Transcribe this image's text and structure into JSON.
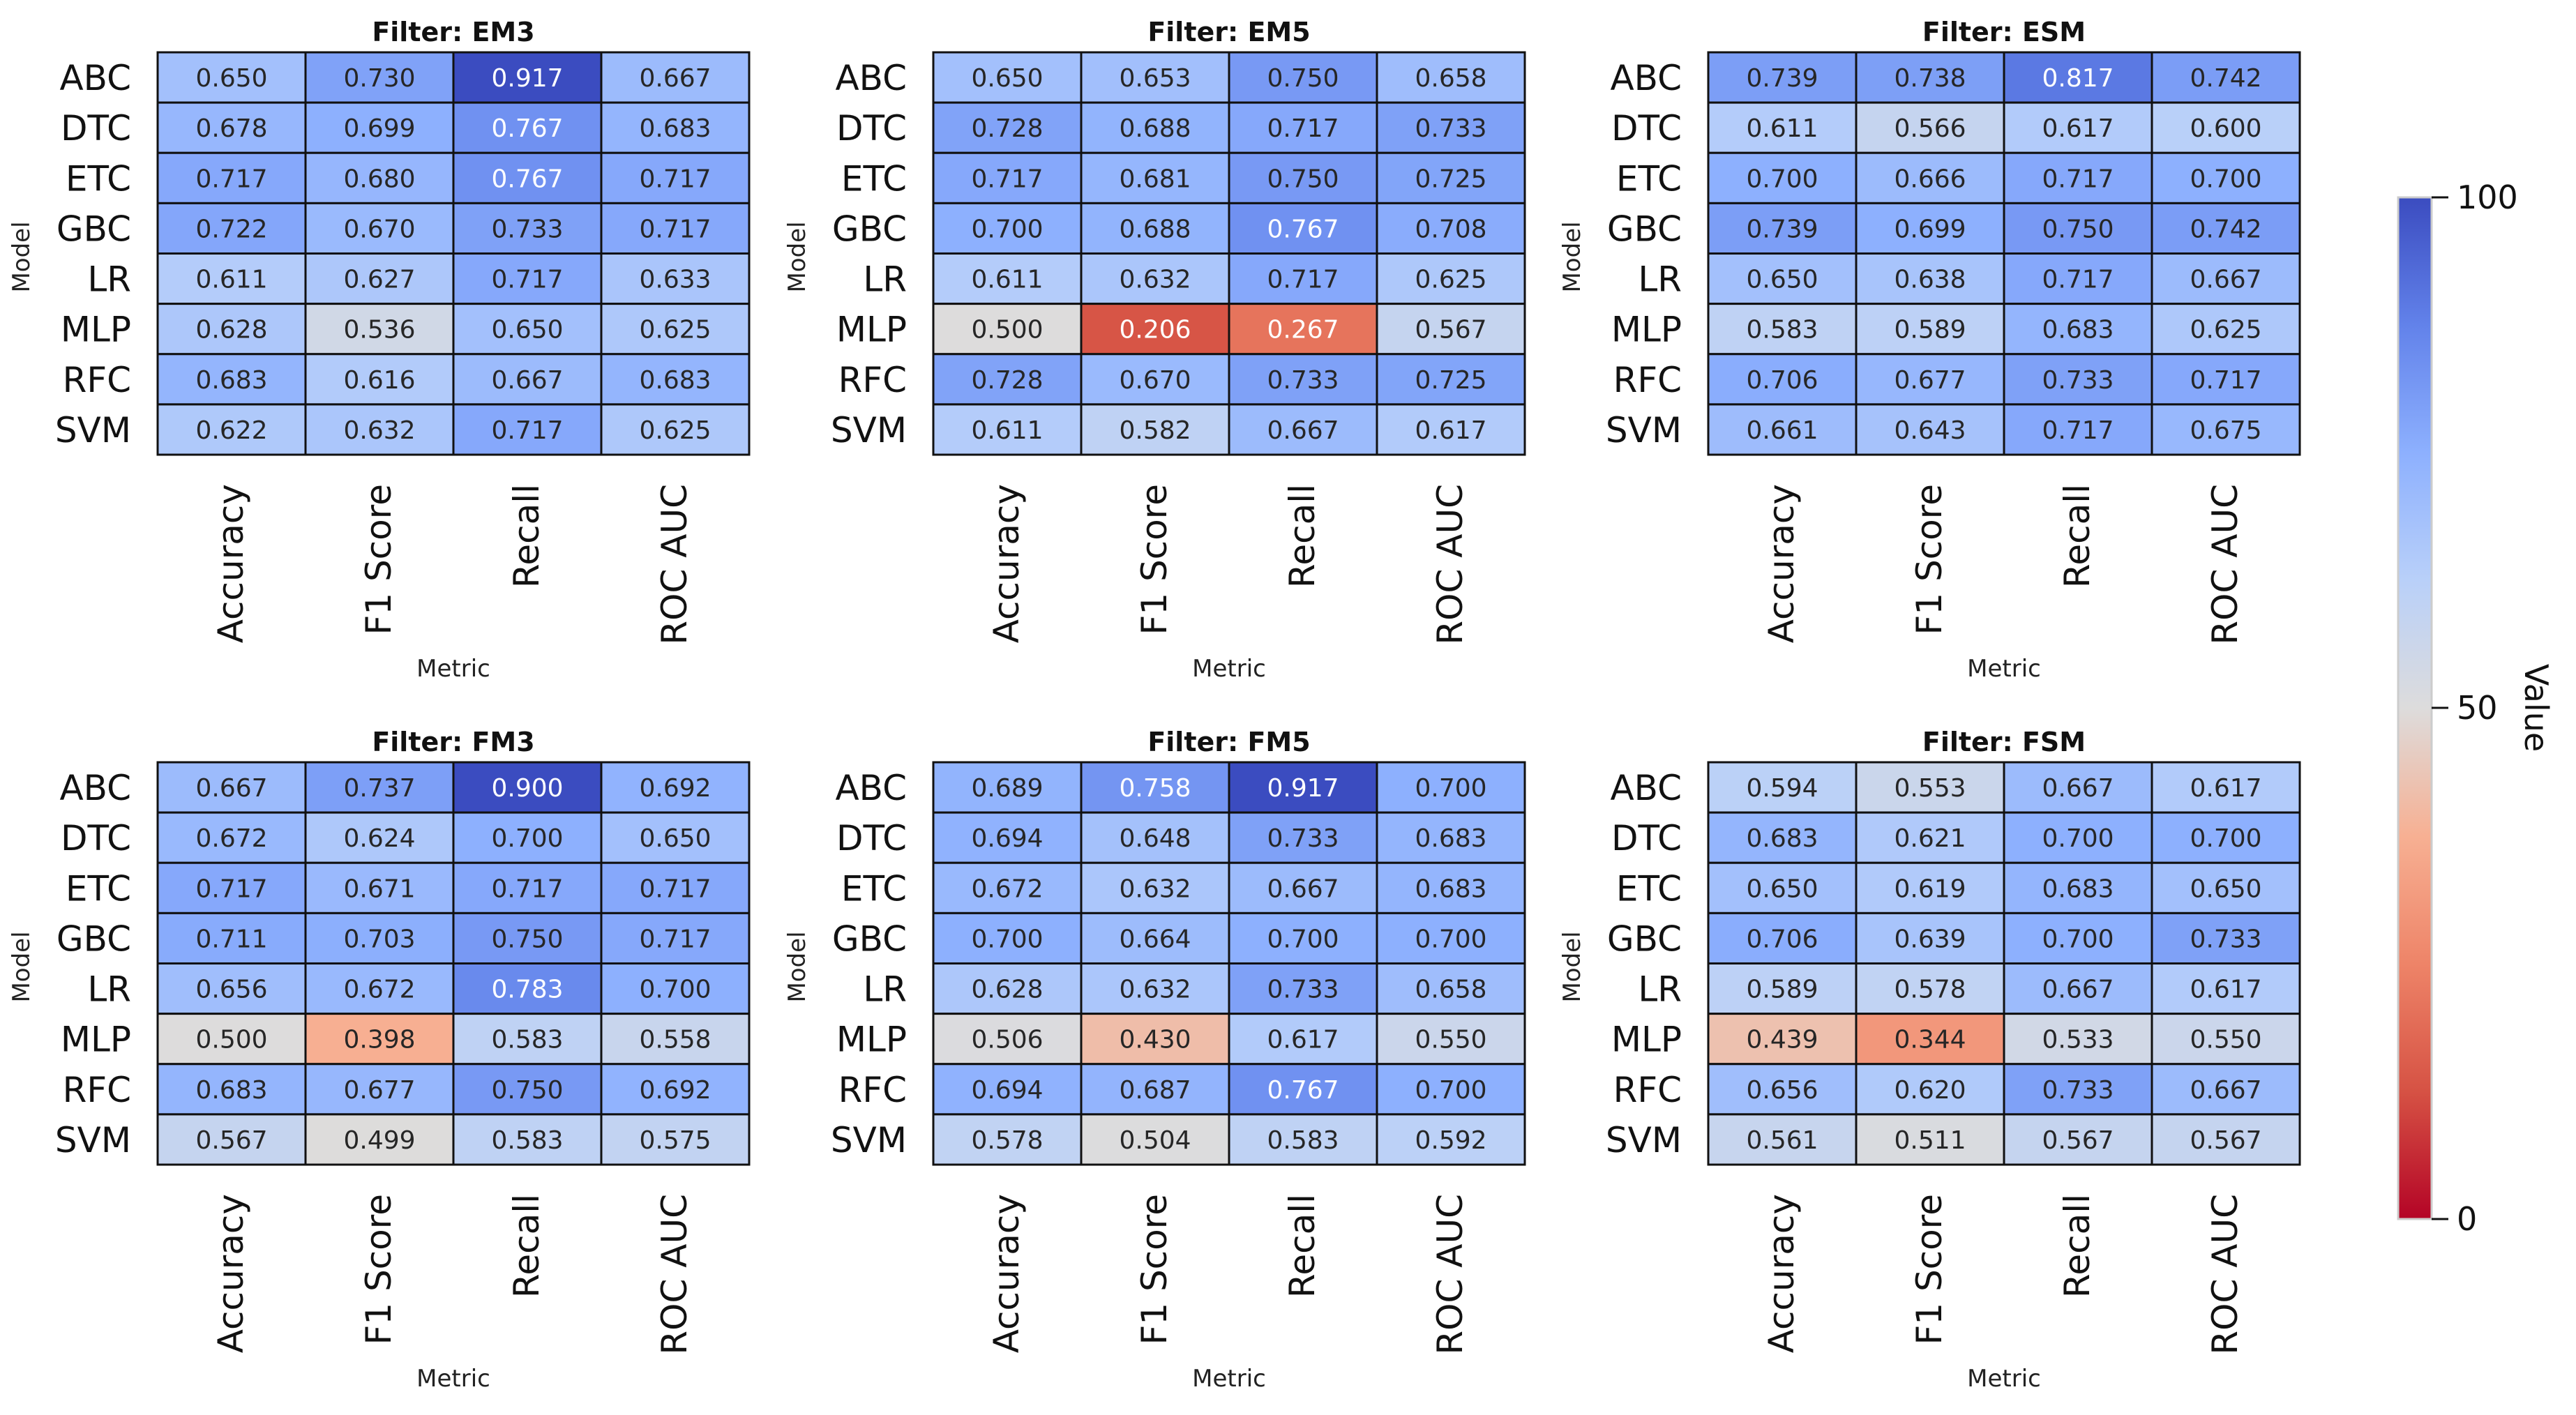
{
  "chart_data": [
    {
      "type": "heatmap",
      "title": "Filter: EM3",
      "xlabel": "Metric",
      "ylabel": "Model",
      "rows": [
        "ABC",
        "DTC",
        "ETC",
        "GBC",
        "LR",
        "MLP",
        "RFC",
        "SVM"
      ],
      "cols": [
        "Accuracy",
        "F1 Score",
        "Recall",
        "ROC AUC"
      ],
      "values": [
        [
          0.65,
          0.73,
          0.917,
          0.667
        ],
        [
          0.678,
          0.699,
          0.767,
          0.683
        ],
        [
          0.717,
          0.68,
          0.767,
          0.717
        ],
        [
          0.722,
          0.67,
          0.733,
          0.717
        ],
        [
          0.611,
          0.627,
          0.717,
          0.633
        ],
        [
          0.628,
          0.536,
          0.65,
          0.625
        ],
        [
          0.683,
          0.616,
          0.667,
          0.683
        ],
        [
          0.622,
          0.632,
          0.717,
          0.625
        ]
      ]
    },
    {
      "type": "heatmap",
      "title": "Filter: EM5",
      "xlabel": "Metric",
      "ylabel": "Model",
      "rows": [
        "ABC",
        "DTC",
        "ETC",
        "GBC",
        "LR",
        "MLP",
        "RFC",
        "SVM"
      ],
      "cols": [
        "Accuracy",
        "F1 Score",
        "Recall",
        "ROC AUC"
      ],
      "values": [
        [
          0.65,
          0.653,
          0.75,
          0.658
        ],
        [
          0.728,
          0.688,
          0.717,
          0.733
        ],
        [
          0.717,
          0.681,
          0.75,
          0.725
        ],
        [
          0.7,
          0.688,
          0.767,
          0.708
        ],
        [
          0.611,
          0.632,
          0.717,
          0.625
        ],
        [
          0.5,
          0.206,
          0.267,
          0.567
        ],
        [
          0.728,
          0.67,
          0.733,
          0.725
        ],
        [
          0.611,
          0.582,
          0.667,
          0.617
        ]
      ]
    },
    {
      "type": "heatmap",
      "title": "Filter: ESM",
      "xlabel": "Metric",
      "ylabel": "Model",
      "rows": [
        "ABC",
        "DTC",
        "ETC",
        "GBC",
        "LR",
        "MLP",
        "RFC",
        "SVM"
      ],
      "cols": [
        "Accuracy",
        "F1 Score",
        "Recall",
        "ROC AUC"
      ],
      "values": [
        [
          0.739,
          0.738,
          0.817,
          0.742
        ],
        [
          0.611,
          0.566,
          0.617,
          0.6
        ],
        [
          0.7,
          0.666,
          0.717,
          0.7
        ],
        [
          0.739,
          0.699,
          0.75,
          0.742
        ],
        [
          0.65,
          0.638,
          0.717,
          0.667
        ],
        [
          0.583,
          0.589,
          0.683,
          0.625
        ],
        [
          0.706,
          0.677,
          0.733,
          0.717
        ],
        [
          0.661,
          0.643,
          0.717,
          0.675
        ]
      ]
    },
    {
      "type": "heatmap",
      "title": "Filter: FM3",
      "xlabel": "Metric",
      "ylabel": "Model",
      "rows": [
        "ABC",
        "DTC",
        "ETC",
        "GBC",
        "LR",
        "MLP",
        "RFC",
        "SVM"
      ],
      "cols": [
        "Accuracy",
        "F1 Score",
        "Recall",
        "ROC AUC"
      ],
      "values": [
        [
          0.667,
          0.737,
          0.9,
          0.692
        ],
        [
          0.672,
          0.624,
          0.7,
          0.65
        ],
        [
          0.717,
          0.671,
          0.717,
          0.717
        ],
        [
          0.711,
          0.703,
          0.75,
          0.717
        ],
        [
          0.656,
          0.672,
          0.783,
          0.7
        ],
        [
          0.5,
          0.398,
          0.583,
          0.558
        ],
        [
          0.683,
          0.677,
          0.75,
          0.692
        ],
        [
          0.567,
          0.499,
          0.583,
          0.575
        ]
      ]
    },
    {
      "type": "heatmap",
      "title": "Filter: FM5",
      "xlabel": "Metric",
      "ylabel": "Model",
      "rows": [
        "ABC",
        "DTC",
        "ETC",
        "GBC",
        "LR",
        "MLP",
        "RFC",
        "SVM"
      ],
      "cols": [
        "Accuracy",
        "F1 Score",
        "Recall",
        "ROC AUC"
      ],
      "values": [
        [
          0.689,
          0.758,
          0.917,
          0.7
        ],
        [
          0.694,
          0.648,
          0.733,
          0.683
        ],
        [
          0.672,
          0.632,
          0.667,
          0.683
        ],
        [
          0.7,
          0.664,
          0.7,
          0.7
        ],
        [
          0.628,
          0.632,
          0.733,
          0.658
        ],
        [
          0.506,
          0.43,
          0.617,
          0.55
        ],
        [
          0.694,
          0.687,
          0.767,
          0.7
        ],
        [
          0.578,
          0.504,
          0.583,
          0.592
        ]
      ]
    },
    {
      "type": "heatmap",
      "title": "Filter: FSM",
      "xlabel": "Metric",
      "ylabel": "Model",
      "rows": [
        "ABC",
        "DTC",
        "ETC",
        "GBC",
        "LR",
        "MLP",
        "RFC",
        "SVM"
      ],
      "cols": [
        "Accuracy",
        "F1 Score",
        "Recall",
        "ROC AUC"
      ],
      "values": [
        [
          0.594,
          0.553,
          0.667,
          0.617
        ],
        [
          0.683,
          0.621,
          0.7,
          0.7
        ],
        [
          0.65,
          0.619,
          0.683,
          0.65
        ],
        [
          0.706,
          0.639,
          0.7,
          0.733
        ],
        [
          0.589,
          0.578,
          0.667,
          0.617
        ],
        [
          0.439,
          0.344,
          0.533,
          0.55
        ],
        [
          0.656,
          0.62,
          0.733,
          0.667
        ],
        [
          0.561,
          0.511,
          0.567,
          0.567
        ]
      ]
    }
  ],
  "colorbar": {
    "label": "Value",
    "ticks": [
      "0",
      "50",
      "100"
    ],
    "range": [
      0,
      100
    ],
    "colormap": "coolwarm",
    "low_color": "#b40426",
    "mid_color": "#dddddd",
    "high_color": "#3b4cc0"
  }
}
